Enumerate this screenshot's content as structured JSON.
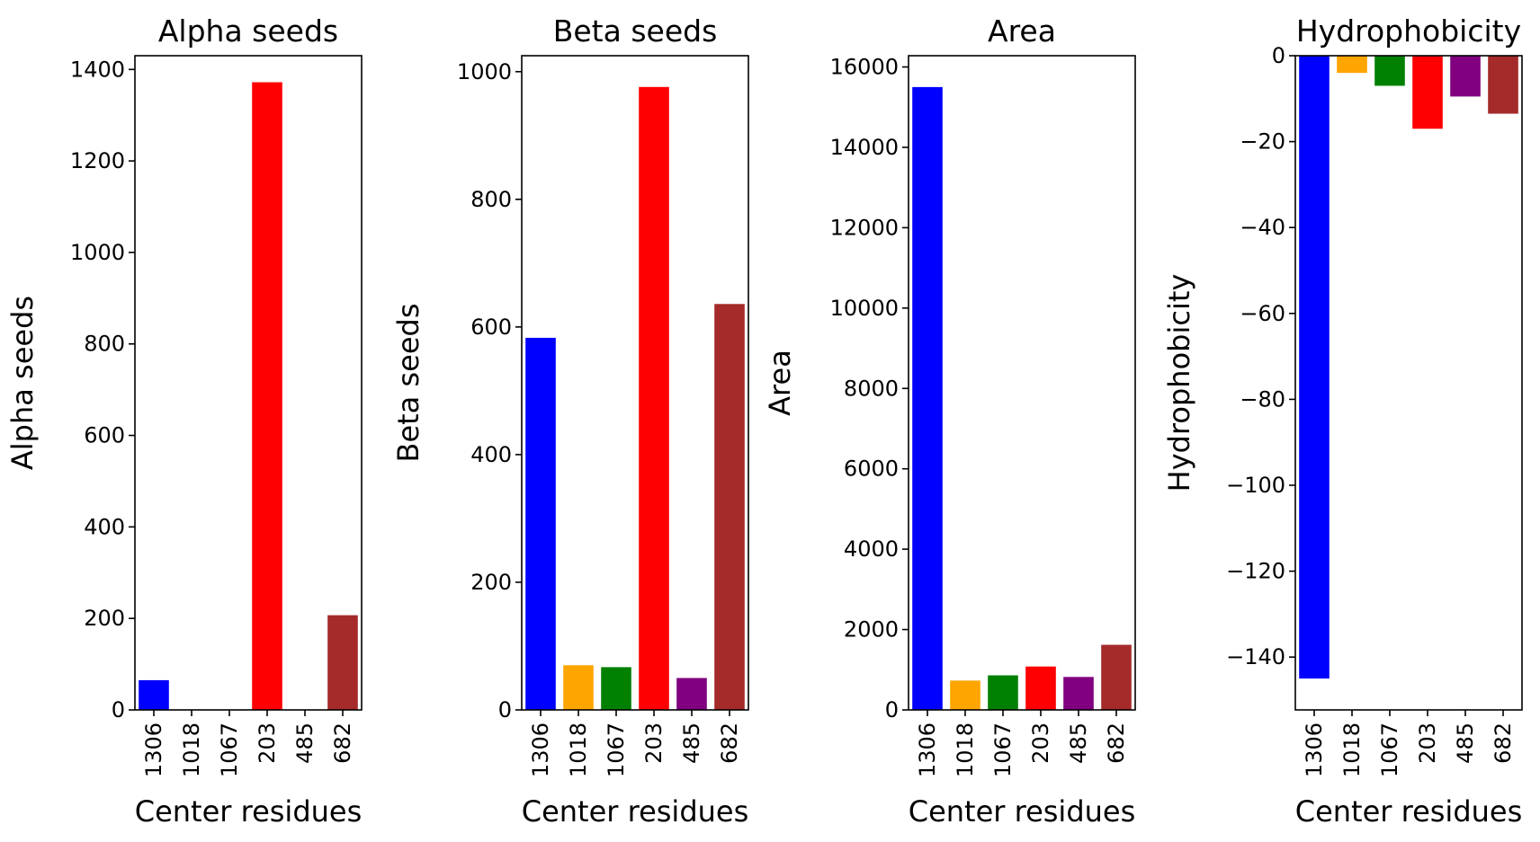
{
  "figure": {
    "panel_count": 4
  },
  "chart_data": [
    {
      "type": "bar",
      "title": "Alpha seeds",
      "xlabel": "Center residues",
      "ylabel": "Alpha seeds",
      "categories": [
        "1306",
        "1018",
        "1067",
        "203",
        "485",
        "682"
      ],
      "values": [
        65,
        0,
        0,
        1372,
        0,
        207
      ],
      "colors": [
        "#0000ff",
        "#ffa500",
        "#008000",
        "#ff0000",
        "#800080",
        "#a52a2a"
      ],
      "ylim": [
        0,
        1430
      ],
      "yticks": [
        0,
        200,
        400,
        600,
        800,
        1000,
        1200,
        1400
      ],
      "ytick_labels": [
        "0",
        "200",
        "400",
        "600",
        "800",
        "1000",
        "1200",
        "1400"
      ],
      "grid": false,
      "legend": false
    },
    {
      "type": "bar",
      "title": "Beta seeds",
      "xlabel": "Center residues",
      "ylabel": "Beta seeds",
      "categories": [
        "1306",
        "1018",
        "1067",
        "203",
        "485",
        "682"
      ],
      "values": [
        583,
        70,
        67,
        976,
        50,
        636
      ],
      "colors": [
        "#0000ff",
        "#ffa500",
        "#008000",
        "#ff0000",
        "#800080",
        "#a52a2a"
      ],
      "ylim": [
        0,
        1025
      ],
      "yticks": [
        0,
        200,
        400,
        600,
        800,
        1000
      ],
      "ytick_labels": [
        "0",
        "200",
        "400",
        "600",
        "800",
        "1000"
      ],
      "grid": false,
      "legend": false
    },
    {
      "type": "bar",
      "title": "Area",
      "xlabel": "Center residues",
      "ylabel": "Area",
      "categories": [
        "1306",
        "1018",
        "1067",
        "203",
        "485",
        "682"
      ],
      "values": [
        15500,
        730,
        860,
        1080,
        820,
        1620
      ],
      "colors": [
        "#0000ff",
        "#ffa500",
        "#008000",
        "#ff0000",
        "#800080",
        "#a52a2a"
      ],
      "ylim": [
        0,
        16280
      ],
      "yticks": [
        0,
        2000,
        4000,
        6000,
        8000,
        10000,
        12000,
        14000,
        16000
      ],
      "ytick_labels": [
        "0",
        "2000",
        "4000",
        "6000",
        "8000",
        "10000",
        "12000",
        "14000",
        "16000"
      ],
      "grid": false,
      "legend": false
    },
    {
      "type": "bar",
      "title": "Hydrophobicity",
      "xlabel": "Center residues",
      "ylabel": "Hydrophobicity",
      "categories": [
        "1306",
        "1018",
        "1067",
        "203",
        "485",
        "682"
      ],
      "values": [
        -145,
        -4,
        -7,
        -17,
        -9.5,
        -13.5
      ],
      "colors": [
        "#0000ff",
        "#ffa500",
        "#008000",
        "#ff0000",
        "#800080",
        "#a52a2a"
      ],
      "ylim": [
        -152.3,
        0
      ],
      "yticks": [
        0,
        -20,
        -40,
        -60,
        -80,
        -100,
        -120,
        -140
      ],
      "ytick_labels": [
        "0",
        "−20",
        "−40",
        "−60",
        "−80",
        "−100",
        "−120",
        "−140"
      ],
      "grid": false,
      "legend": false
    }
  ]
}
